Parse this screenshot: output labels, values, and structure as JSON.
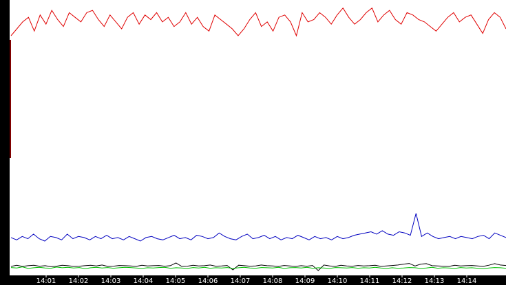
{
  "chart_data": {
    "type": "line",
    "title": "",
    "xlabel": "",
    "ylabel": "",
    "grid": false,
    "legend": "none",
    "ylim": [
      0,
      11849
    ],
    "y_ticks": [
      "0",
      "1184",
      "2369",
      "3554",
      "4739",
      "5924",
      "7109",
      "8294",
      "9479",
      "10664",
      "11849"
    ],
    "x_ticks": [
      "14:01",
      "14:02",
      "14:03",
      "14:04",
      "14:05",
      "14:06",
      "14:07",
      "14:08",
      "14:09",
      "14:10",
      "14:11",
      "14:12",
      "14:13",
      "14:14"
    ],
    "colors": {
      "red": "#e00000",
      "blue": "#0000c0",
      "black": "#000000",
      "green": "#00c000",
      "axis_bar": "#000000",
      "left_bar": "#800000"
    },
    "series": [
      {
        "color": "#e00000",
        "values": [
          10300,
          10600,
          10900,
          11100,
          10500,
          11200,
          10800,
          11400,
          11000,
          10700,
          11300,
          11100,
          10900,
          11300,
          11400,
          11000,
          10700,
          11200,
          10900,
          10600,
          11100,
          11300,
          10800,
          11200,
          11000,
          11300,
          10900,
          11100,
          10700,
          10900,
          11300,
          10800,
          11100,
          10700,
          10500,
          11200,
          11000,
          10800,
          10600,
          10300,
          10600,
          11000,
          11300,
          10700,
          10900,
          10500,
          11100,
          11200,
          10900,
          10300,
          11300,
          10900,
          11000,
          11300,
          11100,
          10800,
          11200,
          11500,
          11100,
          10800,
          11000,
          11300,
          11500,
          10900,
          11200,
          11400,
          11000,
          10800,
          11300,
          11200,
          11000,
          10900,
          10700,
          10500,
          10800,
          11100,
          11300,
          10900,
          11100,
          11200,
          10800,
          10400,
          11000,
          11300,
          11100,
          10600
        ]
      },
      {
        "color": "#0000c0",
        "values": [
          1550,
          1450,
          1600,
          1500,
          1700,
          1500,
          1400,
          1600,
          1550,
          1450,
          1700,
          1500,
          1600,
          1550,
          1450,
          1600,
          1500,
          1650,
          1500,
          1550,
          1450,
          1600,
          1500,
          1400,
          1550,
          1600,
          1500,
          1450,
          1550,
          1650,
          1500,
          1550,
          1450,
          1650,
          1600,
          1500,
          1550,
          1750,
          1600,
          1500,
          1450,
          1600,
          1700,
          1500,
          1550,
          1650,
          1500,
          1600,
          1450,
          1550,
          1500,
          1650,
          1550,
          1450,
          1600,
          1500,
          1550,
          1450,
          1600,
          1500,
          1550,
          1650,
          1700,
          1750,
          1800,
          1700,
          1850,
          1700,
          1650,
          1800,
          1750,
          1650,
          2600,
          1600,
          1750,
          1600,
          1500,
          1550,
          1600,
          1500,
          1600,
          1550,
          1500,
          1600,
          1650,
          1500,
          1750,
          1650,
          1550
        ]
      },
      {
        "color": "#000000",
        "values": [
          300,
          350,
          300,
          330,
          350,
          310,
          330,
          290,
          310,
          350,
          330,
          300,
          310,
          330,
          350,
          320,
          360,
          300,
          310,
          340,
          330,
          320,
          300,
          350,
          320,
          330,
          340,
          310,
          330,
          450,
          300,
          310,
          350,
          320,
          330,
          360,
          310,
          320,
          340,
          150,
          350,
          330,
          310,
          320,
          360,
          330,
          320,
          300,
          340,
          320,
          300,
          330,
          310,
          340,
          120,
          360,
          320,
          300,
          350,
          320,
          310,
          340,
          320,
          330,
          350,
          300,
          320,
          340,
          360,
          400,
          430,
          320,
          400,
          420,
          330,
          320,
          310,
          300,
          350,
          320,
          330,
          340,
          320,
          300,
          350,
          420,
          360,
          340
        ]
      },
      {
        "color": "#00c000",
        "values": [
          250,
          230,
          280,
          210,
          240,
          260,
          230,
          220,
          270,
          240,
          260,
          230,
          250,
          200,
          240,
          260,
          230,
          250,
          220,
          240,
          260,
          250,
          230,
          210,
          240,
          230,
          250,
          260,
          220,
          240,
          230,
          210,
          250,
          230,
          260,
          220,
          240,
          230,
          250,
          210,
          240,
          260,
          230,
          220,
          250,
          240,
          230,
          260,
          210,
          240,
          250,
          230,
          260,
          220,
          240,
          230,
          210,
          250,
          240,
          230,
          250,
          220,
          240,
          230,
          260,
          230,
          210,
          240,
          220,
          230,
          250,
          240,
          210,
          230,
          260,
          220,
          240,
          230,
          210,
          250,
          230,
          240,
          220,
          200,
          230,
          250,
          240,
          220
        ]
      }
    ]
  }
}
